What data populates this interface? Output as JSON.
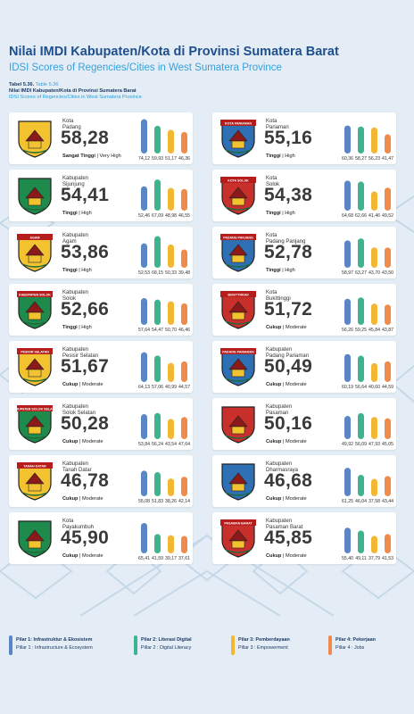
{
  "header": {
    "title": "Nilai IMDI Kabupaten/Kota di Provinsi Sumatera Barat",
    "subtitle": "IDSI Scores of Regencies/Cities in West Sumatera Province",
    "table_number": "Tabel 5.36.",
    "table_number_en": "Table 5.36",
    "table_title": "Nilai IMDI Kabupaten/Kota di Provinsi Sumatera Barat",
    "table_title_en": "IDSI Scores of Regencies/Cities in West Sumatera Province"
  },
  "colors": {
    "pillar1": "#5b86c5",
    "pillar2": "#3db48f",
    "pillar3": "#f2b733",
    "pillar4": "#f08c4b"
  },
  "chart_data": {
    "type": "bar",
    "ylim": [
      0,
      100
    ],
    "pillars": [
      "Pilar 1",
      "Pilar 2",
      "Pilar 3",
      "Pilar 4"
    ],
    "regions": [
      {
        "type": "Kota",
        "name": "Padang",
        "score": "58,28",
        "category": "Sangat Tinggi",
        "category_en": "Very High",
        "logo_text": "",
        "values": [
          74.12,
          59.93,
          51.17,
          46.36
        ],
        "labels": [
          "74,12",
          "59,93",
          "51,17",
          "46,36"
        ]
      },
      {
        "type": "Kota",
        "name": "Pariaman",
        "score": "55,16",
        "category": "Tinggi",
        "category_en": "High",
        "logo_text": "KOTA PARIAMAN",
        "values": [
          60.36,
          58.27,
          56.23,
          41.47
        ],
        "labels": [
          "60,36",
          "58,27",
          "56,23",
          "41,47"
        ]
      },
      {
        "type": "Kabupaten",
        "name": "Sijunjung",
        "score": "54,41",
        "category": "Tinggi",
        "category_en": "High",
        "logo_text": "",
        "values": [
          52.46,
          67.09,
          48.98,
          46.55
        ],
        "labels": [
          "52,46",
          "67,09",
          "48,98",
          "46,55"
        ]
      },
      {
        "type": "Kota",
        "name": "Solok",
        "score": "54,38",
        "category": "Tinggi",
        "category_en": "High",
        "logo_text": "KOTA SOLOK",
        "values": [
          64.68,
          62.66,
          41.46,
          49.52
        ],
        "labels": [
          "64,68",
          "62,66",
          "41,46",
          "49,52"
        ]
      },
      {
        "type": "Kabupaten",
        "name": "Agam",
        "score": "53,86",
        "category": "Tinggi",
        "category_en": "High",
        "logo_text": "AGAM",
        "values": [
          52.53,
          68.15,
          50.33,
          39.48
        ],
        "labels": [
          "52,53",
          "68,15",
          "50,33",
          "39,48"
        ]
      },
      {
        "type": "Kota",
        "name": "Padang Panjang",
        "score": "52,78",
        "category": "Tinggi",
        "category_en": "High",
        "logo_text": "PADANG PANJANG",
        "values": [
          58.97,
          63.27,
          43.7,
          43.5
        ],
        "labels": [
          "58,97",
          "63,27",
          "43,70",
          "43,50"
        ]
      },
      {
        "type": "Kabupaten",
        "name": "Solok",
        "score": "52,66",
        "category": "Tinggi",
        "category_en": "High",
        "logo_text": "KABUPATEN SOLOK",
        "values": [
          57.64,
          54.47,
          50.7,
          46.46
        ],
        "labels": [
          "57,64",
          "54,47",
          "50,70",
          "46,46"
        ]
      },
      {
        "type": "Kota",
        "name": "Bukittinggi",
        "score": "51,72",
        "category": "Cukup",
        "category_en": "Moderate",
        "logo_text": "BUKITTINGGI",
        "values": [
          56.26,
          59.25,
          45.84,
          43.87
        ],
        "labels": [
          "56,26",
          "59,25",
          "45,84",
          "43,87"
        ]
      },
      {
        "type": "Kabupaten",
        "name": "Pesisir Selatan",
        "score": "51,67",
        "category": "Cukup",
        "category_en": "Moderate",
        "logo_text": "PESISIR SELATAN",
        "values": [
          64.13,
          57.06,
          40.99,
          44.57
        ],
        "labels": [
          "64,13",
          "57,06",
          "40,99",
          "44,57"
        ]
      },
      {
        "type": "Kabupaten",
        "name": "Padang Pariaman",
        "score": "50,49",
        "category": "Cukup",
        "category_en": "Moderate",
        "logo_text": "PADANG PARIAMAN",
        "values": [
          60.19,
          56.64,
          40.6,
          44.59
        ],
        "labels": [
          "60,19",
          "56,64",
          "40,60",
          "44,59"
        ]
      },
      {
        "type": "Kabupaten",
        "name": "Solok Selatan",
        "score": "50,28",
        "category": "Cukup",
        "category_en": "Moderate",
        "logo_text": "KABUPATEN SOLOK SELATAN",
        "values": [
          53.84,
          56.24,
          43.54,
          47.64
        ],
        "labels": [
          "53,84",
          "56,24",
          "43,54",
          "47,64"
        ]
      },
      {
        "type": "Kabupaten",
        "name": "Pasaman",
        "score": "50,16",
        "category": "Cukup",
        "category_en": "Moderate",
        "logo_text": "",
        "values": [
          49.92,
          56.09,
          47.93,
          45.05
        ],
        "labels": [
          "49,92",
          "56,09",
          "47,93",
          "45,05"
        ]
      },
      {
        "type": "Kabupaten",
        "name": "Tanah Datar",
        "score": "46,78",
        "category": "Cukup",
        "category_en": "Moderate",
        "logo_text": "TANAH DATAR",
        "values": [
          55.08,
          51.83,
          38.26,
          42.14
        ],
        "labels": [
          "55,08",
          "51,83",
          "38,26",
          "42,14"
        ]
      },
      {
        "type": "Kabupaten",
        "name": "Dharmasraya",
        "score": "46,68",
        "category": "Cukup",
        "category_en": "Moderate",
        "logo_text": "",
        "values": [
          61.25,
          46.04,
          37.58,
          43.44
        ],
        "labels": [
          "61,25",
          "46,04",
          "37,58",
          "43,44"
        ]
      },
      {
        "type": "Kota",
        "name": "Payakumbuh",
        "score": "45,90",
        "category": "Cukup",
        "category_en": "Moderate",
        "logo_text": "",
        "values": [
          65.41,
          41.59,
          39.17,
          37.61
        ],
        "labels": [
          "65,41",
          "41,59",
          "39,17",
          "37,61"
        ]
      },
      {
        "type": "Kabupaten",
        "name": "Pasaman Barat",
        "score": "45,85",
        "category": "Cukup",
        "category_en": "Moderate",
        "logo_text": "PASAMAN BARAT",
        "values": [
          55.4,
          49.11,
          37.79,
          41.53
        ],
        "labels": [
          "55,40",
          "49,11",
          "37,79",
          "41,53"
        ]
      }
    ]
  },
  "legend": [
    {
      "id": "Pilar 1: Infrastruktur & Ekosistem",
      "en": "Pillar 1 : Infrastructure & Ecosystem"
    },
    {
      "id": "Pilar 2: Literasi Digital",
      "en": "Pillar 2 : Digital Literacy"
    },
    {
      "id": "Pilar 3: Pemberdayaan",
      "en": "Pillar 3 : Empowerment"
    },
    {
      "id": "Pilar 4: Pekerjaan",
      "en": "Pillar 4 : Jobs"
    }
  ]
}
